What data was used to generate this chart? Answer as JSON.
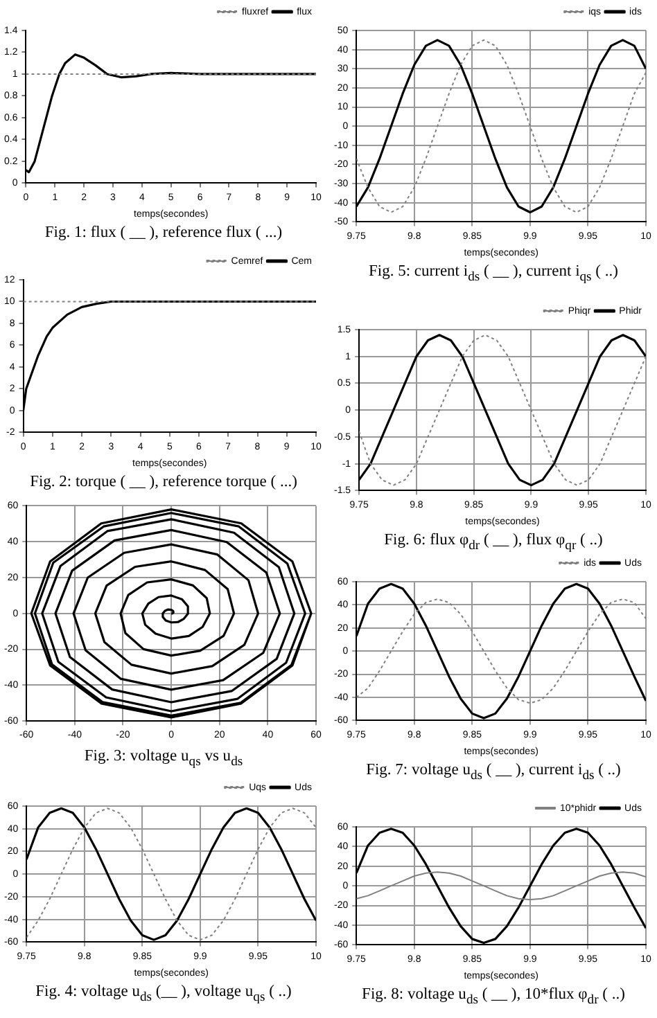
{
  "chart_data": [
    {
      "type": "line",
      "title": "Fig. 1: flux ( __ ), reference flux ( ...)",
      "xlabel": "temps(secondes)",
      "xlim": [
        0,
        10
      ],
      "xticks": [
        0,
        1,
        2,
        3,
        4,
        5,
        6,
        7,
        8,
        9,
        10
      ],
      "ylim": [
        0,
        1.4
      ],
      "yticks": [
        0,
        0.2,
        0.4,
        0.6,
        0.8,
        1,
        1.2,
        1.4
      ],
      "grid": false,
      "legend": "top right",
      "series": [
        {
          "name": "flux",
          "color": "#000000",
          "line_style": "solid",
          "x": [
            0,
            0.1,
            0.3,
            0.6,
            0.9,
            1.15,
            1.35,
            1.7,
            2.0,
            2.4,
            2.8,
            3.3,
            3.8,
            4.3,
            5,
            6,
            10
          ],
          "values": [
            0.12,
            0.1,
            0.2,
            0.5,
            0.8,
            1.0,
            1.1,
            1.18,
            1.15,
            1.08,
            1.0,
            0.97,
            0.98,
            1.0,
            1.01,
            1.0,
            1.0
          ]
        },
        {
          "name": "fluxref",
          "color": "#808080",
          "line_style": "dotted",
          "x": [
            0,
            10
          ],
          "values": [
            1,
            1
          ]
        }
      ]
    },
    {
      "type": "line",
      "title": "Fig.  2: torque ( __ ), reference torque ( ...)",
      "xlabel": "temps(secondes)",
      "xlim": [
        0,
        10
      ],
      "xticks": [
        0,
        1,
        2,
        3,
        4,
        5,
        6,
        7,
        8,
        9,
        10
      ],
      "ylim": [
        -2,
        12
      ],
      "yticks": [
        -2,
        0,
        2,
        4,
        6,
        8,
        10,
        12
      ],
      "grid": false,
      "legend": "top right",
      "series": [
        {
          "name": "Cem",
          "color": "#000000",
          "line_style": "solid",
          "x": [
            0,
            0.1,
            0.3,
            0.5,
            0.8,
            1,
            1.5,
            2,
            2.5,
            3,
            4,
            10
          ],
          "values": [
            0,
            2,
            3.5,
            5,
            6.8,
            7.6,
            8.8,
            9.5,
            9.8,
            10,
            10,
            10
          ]
        },
        {
          "name": "Cemref",
          "color": "#808080",
          "line_style": "dotted",
          "x": [
            0,
            10
          ],
          "values": [
            10,
            10
          ]
        }
      ]
    },
    {
      "type": "line",
      "title": "Fig.  3: voltage u$_{qs}$  vs  u$_{ds}$",
      "xlim": [
        -60,
        60
      ],
      "xticks": [
        -60,
        -40,
        -20,
        0,
        20,
        40,
        60
      ],
      "ylim": [
        -60,
        60
      ],
      "yticks": [
        -60,
        -40,
        -20,
        0,
        20,
        40,
        60
      ],
      "grid": true,
      "legend": false,
      "series": [
        {
          "color": "#000000",
          "line_style": "solid",
          "x": [
            0,
            0.5,
            0.9,
            0.8,
            0,
            -1.3,
            -2.6,
            -3.5,
            -3.5,
            -2.3,
            0,
            2.8,
            5.2,
            7,
            6.9,
            4.5,
            0,
            -5.3,
            -9.5,
            -12,
            -10.8,
            -6.5,
            0,
            7.3,
            13,
            16,
            14.7,
            9,
            0,
            -10,
            -17.8,
            -21,
            -19,
            -11.5,
            0,
            12,
            21.7,
            26,
            23.4,
            14,
            0,
            -15,
            -26.8,
            -31.5,
            -27.7,
            -16.5,
            0,
            17,
            30.3,
            36,
            32,
            19,
            0,
            -19.5,
            -34.6,
            -40.5,
            -35.5,
            -21,
            0,
            21.5,
            38.1,
            45,
            39.4,
            23,
            0,
            -23.5,
            -41.1,
            -48,
            -42,
            -24.5,
            0,
            25,
            43.7,
            51,
            44.6,
            26,
            0,
            -26.5,
            -45.9,
            -53.5,
            -46.8,
            -27,
            0,
            27.5,
            47.6,
            55.5,
            48.1,
            28,
            0,
            -28,
            -48.9,
            -56.5,
            -49.4,
            -28.5,
            0,
            28.8,
            49.8,
            58,
            50.2,
            29,
            0,
            -29,
            -50.2,
            -58,
            -50.2,
            -29,
            0,
            29,
            50.2,
            58
          ],
          "values": [
            0,
            0,
            0.5,
            1.3,
            2,
            2.2,
            1.5,
            0,
            -2,
            -3.9,
            -5,
            -4.8,
            -3,
            0,
            4,
            7.8,
            10,
            9.1,
            5.5,
            0,
            -6.3,
            -11.3,
            -14,
            -12.6,
            -7.5,
            0,
            8.5,
            15.6,
            19,
            17.3,
            10.3,
            0,
            -11,
            -19.9,
            -23.5,
            -20.8,
            -12.5,
            0,
            13.5,
            24.2,
            29,
            26,
            15.5,
            0,
            -16,
            -28.6,
            -33.5,
            -29.4,
            -17.5,
            0,
            18.5,
            32.9,
            38.5,
            33.8,
            20,
            0,
            -20.5,
            -36.4,
            -42.5,
            -37.2,
            -22,
            0,
            22.8,
            39.8,
            46.5,
            40.7,
            23.8,
            0,
            -24.3,
            -42.4,
            -49.5,
            -43.3,
            -25.3,
            0,
            25.8,
            45,
            52.5,
            45.9,
            26.5,
            0,
            -27,
            -46.8,
            -54.5,
            -47.6,
            -27.5,
            0,
            27.8,
            48.5,
            56,
            48.5,
            28.3,
            0,
            -28.5,
            -49.4,
            -57,
            -49.8,
            -28.8,
            0,
            29,
            50.2,
            58,
            50.2,
            29,
            0,
            -29,
            -50.2,
            -58,
            -50.2,
            -29,
            0
          ]
        }
      ]
    },
    {
      "type": "line",
      "title": "Fig. 4: voltage u$_{ds}$ (__ ), voltage u$_{qs}$ ( ..)",
      "xlabel": "temps(secondes)",
      "xlim": [
        9.75,
        10
      ],
      "xticks": [
        9.75,
        9.8,
        9.85,
        9.9,
        9.95,
        10
      ],
      "ylim": [
        -60,
        60
      ],
      "yticks": [
        -60,
        -40,
        -20,
        0,
        20,
        40,
        60
      ],
      "grid": true,
      "legend": "top right",
      "x": [
        9.75,
        9.76,
        9.77,
        9.78,
        9.79,
        9.8,
        9.81,
        9.82,
        9.83,
        9.84,
        9.85,
        9.86,
        9.87,
        9.88,
        9.89,
        9.9,
        9.91,
        9.92,
        9.93,
        9.94,
        9.95,
        9.96,
        9.97,
        9.98,
        9.99,
        10
      ],
      "series": [
        {
          "name": "Uds",
          "color": "#000000",
          "line_style": "solid",
          "values": [
            13,
            41,
            54,
            58,
            54,
            41,
            22,
            0,
            -22,
            -41,
            -54,
            -58,
            -54,
            -41,
            -22,
            0,
            22,
            41,
            54,
            58,
            54,
            41,
            22,
            0,
            -22,
            -41
          ]
        },
        {
          "name": "Uqs",
          "color": "#808080",
          "line_style": "dotted",
          "values": [
            -56,
            -41,
            -22,
            0,
            22,
            41,
            54,
            58,
            54,
            41,
            22,
            0,
            -22,
            -41,
            -54,
            -58,
            -54,
            -41,
            -22,
            0,
            22,
            41,
            54,
            58,
            54,
            41
          ]
        }
      ]
    },
    {
      "type": "line",
      "title": "Fig.  5: current i$_{ds}$ ( __ ), current i$_{qs}$ ( ..)",
      "xlabel": "temps(secondes)",
      "xlim": [
        9.75,
        10
      ],
      "xticks": [
        9.75,
        9.8,
        9.85,
        9.9,
        9.95,
        10
      ],
      "ylim": [
        -50,
        50
      ],
      "yticks": [
        -50,
        -40,
        -30,
        -20,
        -10,
        0,
        10,
        20,
        30,
        40,
        50
      ],
      "grid": true,
      "legend": "top right",
      "x": [
        9.75,
        9.76,
        9.77,
        9.78,
        9.79,
        9.8,
        9.81,
        9.82,
        9.83,
        9.84,
        9.85,
        9.86,
        9.87,
        9.88,
        9.89,
        9.9,
        9.91,
        9.92,
        9.93,
        9.94,
        9.95,
        9.96,
        9.97,
        9.98,
        9.99,
        10
      ],
      "series": [
        {
          "name": "ids",
          "color": "#000000",
          "line_style": "solid",
          "values": [
            -42,
            -32,
            -17,
            0,
            17,
            32,
            42,
            45,
            42,
            32,
            17,
            0,
            -17,
            -32,
            -42,
            -45,
            -42,
            -32,
            -17,
            0,
            17,
            32,
            42,
            45,
            42,
            30
          ]
        },
        {
          "name": "iqs",
          "color": "#808080",
          "line_style": "dotted",
          "values": [
            -17,
            -32,
            -42,
            -45,
            -42,
            -32,
            -17,
            0,
            17,
            32,
            42,
            45,
            42,
            32,
            17,
            0,
            -17,
            -32,
            -42,
            -45,
            -42,
            -32,
            -17,
            0,
            17,
            28
          ]
        }
      ]
    },
    {
      "type": "line",
      "title": "Fig.  6: flux φ$_{dr}$ ( __ ), flux φ$_{qr}$  ( ..)",
      "xlabel": "temps(secondes)",
      "xlim": [
        9.75,
        10
      ],
      "xticks": [
        9.75,
        9.8,
        9.85,
        9.9,
        9.95,
        10
      ],
      "ylim": [
        -1.5,
        1.5
      ],
      "yticks": [
        -1.5,
        -1,
        -0.5,
        0,
        0.5,
        1,
        1.5
      ],
      "grid": true,
      "legend": "top right",
      "x": [
        9.75,
        9.76,
        9.77,
        9.78,
        9.79,
        9.8,
        9.81,
        9.82,
        9.83,
        9.84,
        9.85,
        9.86,
        9.87,
        9.88,
        9.89,
        9.9,
        9.91,
        9.92,
        9.93,
        9.94,
        9.95,
        9.96,
        9.97,
        9.98,
        9.99,
        10
      ],
      "series": [
        {
          "name": "Phidr",
          "color": "#000000",
          "line_style": "solid",
          "values": [
            -1.3,
            -1,
            -0.5,
            0,
            0.5,
            1,
            1.3,
            1.4,
            1.3,
            1,
            0.5,
            0,
            -0.5,
            -1,
            -1.3,
            -1.4,
            -1.3,
            -1,
            -0.5,
            0,
            0.5,
            1,
            1.3,
            1.4,
            1.3,
            1
          ]
        },
        {
          "name": "Phiqr",
          "color": "#808080",
          "line_style": "dotted",
          "values": [
            -0.4,
            -1,
            -1.3,
            -1.4,
            -1.3,
            -1,
            -0.5,
            0,
            0.5,
            1,
            1.3,
            1.4,
            1.3,
            1,
            0.5,
            0,
            -0.5,
            -1,
            -1.3,
            -1.4,
            -1.3,
            -1,
            -0.5,
            0,
            0.5,
            1
          ]
        }
      ]
    },
    {
      "type": "line",
      "title": "Fig.  7: voltage u$_{ds}$ ( __ ), current i$_{ds}$ ( ..)",
      "xlabel": "temps(secondes)",
      "xlim": [
        9.75,
        10
      ],
      "xticks": [
        9.75,
        9.8,
        9.85,
        9.9,
        9.95,
        10
      ],
      "ylim": [
        -60,
        60
      ],
      "yticks": [
        -60,
        -40,
        -20,
        0,
        20,
        40,
        60
      ],
      "grid": true,
      "legend": "top right",
      "x": [
        9.75,
        9.76,
        9.77,
        9.78,
        9.79,
        9.8,
        9.81,
        9.82,
        9.83,
        9.84,
        9.85,
        9.86,
        9.87,
        9.88,
        9.89,
        9.9,
        9.91,
        9.92,
        9.93,
        9.94,
        9.95,
        9.96,
        9.97,
        9.98,
        9.99,
        10
      ],
      "series": [
        {
          "name": "Uds",
          "color": "#000000",
          "line_style": "solid",
          "values": [
            13,
            41,
            54,
            58,
            54,
            41,
            22,
            0,
            -22,
            -41,
            -54,
            -58,
            -54,
            -41,
            -22,
            0,
            22,
            41,
            54,
            58,
            54,
            41,
            22,
            0,
            -22,
            -43
          ]
        },
        {
          "name": "ids",
          "color": "#808080",
          "line_style": "dotted",
          "values": [
            -40,
            -32,
            -17,
            0,
            17,
            32,
            42,
            45,
            42,
            32,
            17,
            0,
            -17,
            -32,
            -42,
            -45,
            -42,
            -32,
            -17,
            0,
            17,
            32,
            42,
            45,
            42,
            28
          ]
        }
      ]
    },
    {
      "type": "line",
      "title": "Fig.  8: voltage u$_{ds}$ ( __ ), 10*flux φ$_{dr}$ ( ..)",
      "xlabel": "temps(secondes)",
      "xlim": [
        9.75,
        10
      ],
      "xticks": [
        9.75,
        9.8,
        9.85,
        9.9,
        9.95,
        10
      ],
      "ylim": [
        -60,
        60
      ],
      "yticks": [
        -60,
        -40,
        -20,
        0,
        20,
        40,
        60
      ],
      "grid": true,
      "legend": "top right",
      "x": [
        9.75,
        9.76,
        9.77,
        9.78,
        9.79,
        9.8,
        9.81,
        9.82,
        9.83,
        9.84,
        9.85,
        9.86,
        9.87,
        9.88,
        9.89,
        9.9,
        9.91,
        9.92,
        9.93,
        9.94,
        9.95,
        9.96,
        9.97,
        9.98,
        9.99,
        10
      ],
      "series": [
        {
          "name": "Uds",
          "color": "#000000",
          "line_style": "solid",
          "values": [
            13,
            41,
            54,
            58,
            54,
            41,
            22,
            0,
            -22,
            -41,
            -54,
            -58,
            -54,
            -41,
            -22,
            0,
            22,
            41,
            54,
            58,
            54,
            41,
            22,
            0,
            -22,
            -43
          ]
        },
        {
          "name": "10*phidr",
          "color": "#808080",
          "line_style": "solid",
          "values": [
            -13,
            -10,
            -5,
            0,
            5,
            10,
            13,
            14,
            13,
            10,
            5,
            0,
            -5,
            -10,
            -13,
            -14,
            -13,
            -10,
            -5,
            0,
            5,
            10,
            13,
            14,
            13,
            9
          ]
        }
      ]
    }
  ]
}
